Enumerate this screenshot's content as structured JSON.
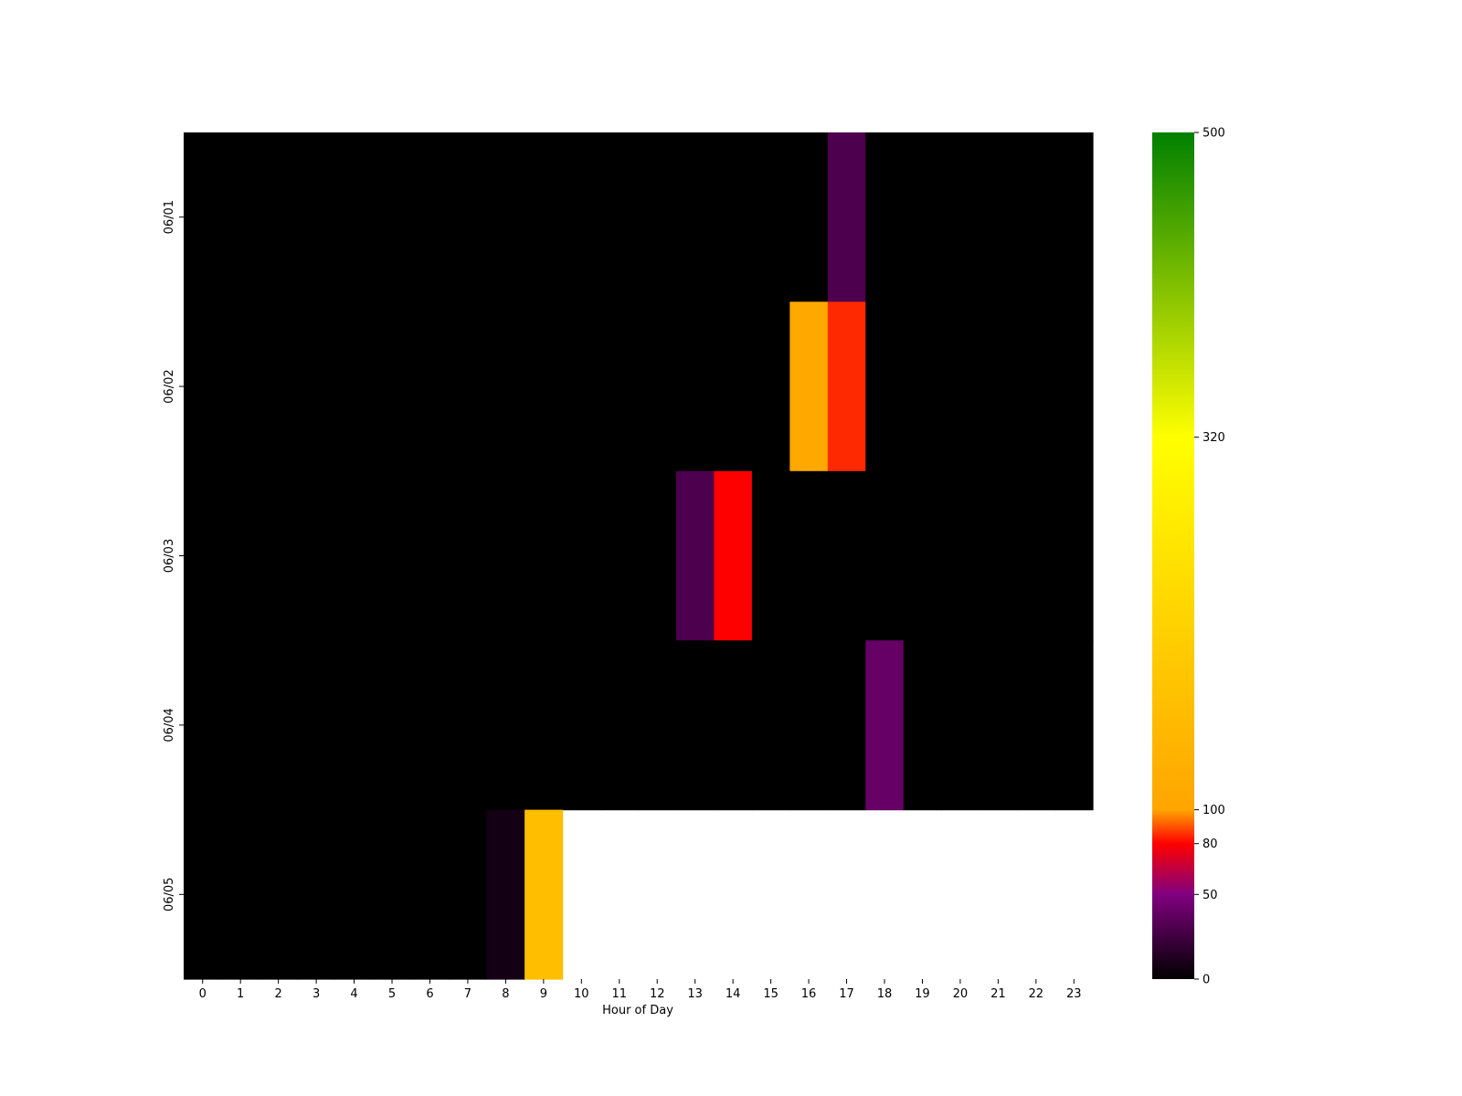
{
  "chart_data": {
    "type": "heatmap",
    "xlabel": "Hour of Day",
    "ylabel": "",
    "x_categories": [
      "0",
      "1",
      "2",
      "3",
      "4",
      "5",
      "6",
      "7",
      "8",
      "9",
      "10",
      "11",
      "12",
      "13",
      "14",
      "15",
      "16",
      "17",
      "18",
      "19",
      "20",
      "21",
      "22",
      "23"
    ],
    "y_categories": [
      "06/01",
      "06/02",
      "06/03",
      "06/04",
      "06/05"
    ],
    "values": [
      [
        0,
        0,
        0,
        0,
        0,
        0,
        0,
        0,
        0,
        0,
        0,
        0,
        0,
        0,
        0,
        0,
        0,
        30,
        0,
        0,
        0,
        0,
        0,
        0
      ],
      [
        0,
        0,
        0,
        0,
        0,
        0,
        0,
        0,
        0,
        0,
        0,
        0,
        0,
        0,
        0,
        0,
        110,
        85,
        0,
        0,
        0,
        0,
        0,
        0
      ],
      [
        0,
        0,
        0,
        0,
        0,
        0,
        0,
        0,
        0,
        0,
        0,
        0,
        0,
        30,
        80,
        0,
        0,
        0,
        0,
        0,
        0,
        0,
        0,
        0
      ],
      [
        0,
        0,
        0,
        0,
        0,
        0,
        0,
        0,
        0,
        0,
        0,
        0,
        0,
        0,
        0,
        0,
        0,
        0,
        40,
        0,
        0,
        0,
        0,
        0
      ],
      [
        0,
        0,
        0,
        0,
        0,
        0,
        0,
        0,
        8,
        160,
        null,
        null,
        null,
        null,
        null,
        null,
        null,
        null,
        null,
        null,
        null,
        null,
        null,
        null
      ]
    ],
    "colorbar": {
      "range": [
        0,
        500
      ],
      "ticks": [
        0,
        50,
        80,
        100,
        320,
        500
      ],
      "stops": [
        {
          "value": 0,
          "color": "#000000"
        },
        {
          "value": 50,
          "color": "#800080"
        },
        {
          "value": 80,
          "color": "#ff0000"
        },
        {
          "value": 100,
          "color": "#ffa500"
        },
        {
          "value": 320,
          "color": "#ffff00"
        },
        {
          "value": 500,
          "color": "#008000"
        }
      ]
    }
  }
}
